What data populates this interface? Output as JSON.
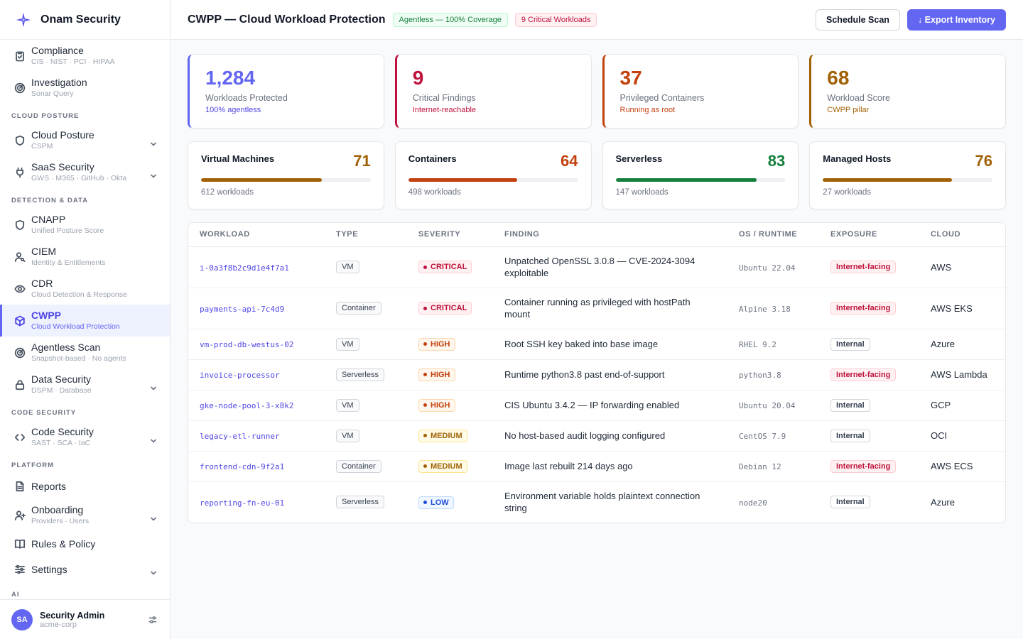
{
  "brand": {
    "name": "Onam Security"
  },
  "nav": {
    "items_a": [
      {
        "label": "Compliance",
        "sub": "CIS · NIST · PCI · HIPAA",
        "icon": "clipboard-check-icon"
      },
      {
        "label": "Investigation",
        "sub": "Sonar Query",
        "icon": "radar-icon"
      }
    ],
    "sec_cloud": "CLOUD POSTURE",
    "items_cloud": [
      {
        "label": "Cloud Posture",
        "sub": "CSPM",
        "icon": "shield-icon"
      },
      {
        "label": "SaaS Security",
        "sub": "GWS · M365 · GitHub · Okta",
        "icon": "plug-icon"
      }
    ],
    "sec_detect": "DETECTION & DATA",
    "items_detect": [
      {
        "label": "CNAPP",
        "sub": "Unified Posture Score",
        "icon": "shield-icon"
      },
      {
        "label": "CIEM",
        "sub": "Identity & Entitlements",
        "icon": "user-key-icon"
      },
      {
        "label": "CDR",
        "sub": "Cloud Detection & Response",
        "icon": "eye-icon"
      },
      {
        "label": "CWPP",
        "sub": "Cloud Workload Protection",
        "icon": "cube-icon"
      },
      {
        "label": "Agentless Scan",
        "sub": "Snapshot-based · No agents",
        "icon": "radar-icon"
      },
      {
        "label": "Data Security",
        "sub": "DSPM · Database",
        "icon": "lock-icon"
      }
    ],
    "sec_code": "CODE SECURITY",
    "items_code": [
      {
        "label": "Code Security",
        "sub": "SAST · SCA · IaC",
        "icon": "code-icon"
      }
    ],
    "sec_platform": "PLATFORM",
    "items_platform": [
      {
        "label": "Reports",
        "sub": "",
        "icon": "document-icon"
      },
      {
        "label": "Onboarding",
        "sub": "Providers · Users",
        "icon": "user-plus-icon"
      },
      {
        "label": "Rules & Policy",
        "sub": "",
        "icon": "book-icon"
      },
      {
        "label": "Settings",
        "sub": "",
        "icon": "sliders-icon"
      }
    ],
    "sec_ai": "AI"
  },
  "user": {
    "initials": "SA",
    "name": "Security Admin",
    "org": "acme-corp"
  },
  "header": {
    "title": "CWPP — Cloud Workload Protection",
    "badge_coverage": "Agentless — 100% Coverage",
    "badge_critical": "9 Critical Workloads",
    "btn_schedule": "Schedule Scan",
    "btn_export": "↓ Export Inventory"
  },
  "stats": [
    {
      "value": "1,284",
      "label": "Workloads Protected",
      "note": "100% agentless",
      "color": "#6366f1",
      "note_color": "#4f46e5"
    },
    {
      "value": "9",
      "label": "Critical Findings",
      "note": "Internet-reachable",
      "color": "#be123c",
      "note_color": "#be123c"
    },
    {
      "value": "37",
      "label": "Privileged Containers",
      "note": "Running as root",
      "color": "#c2410c",
      "note_color": "#c2410c"
    },
    {
      "value": "68",
      "label": "Workload Score",
      "note": "CWPP pillar",
      "color": "#a16207",
      "note_color": "#a16207"
    }
  ],
  "categories": [
    {
      "name": "Virtual Machines",
      "score": "71",
      "fill": 0.71,
      "count": "612 workloads",
      "color": "#a16207"
    },
    {
      "name": "Containers",
      "score": "64",
      "fill": 0.64,
      "count": "498 workloads",
      "color": "#c2410c"
    },
    {
      "name": "Serverless",
      "score": "83",
      "fill": 0.83,
      "count": "147 workloads",
      "color": "#15803d"
    },
    {
      "name": "Managed Hosts",
      "score": "76",
      "fill": 0.76,
      "count": "27 workloads",
      "color": "#a16207"
    }
  ],
  "table": {
    "headers": [
      "WORKLOAD",
      "TYPE",
      "SEVERITY",
      "FINDING",
      "OS / RUNTIME",
      "EXPOSURE",
      "CLOUD"
    ],
    "rows": [
      {
        "workload": "i-0a3f8b2c9d1e4f7a1",
        "type": "VM",
        "severity": "CRITICAL",
        "sev": "critical",
        "finding": "Unpatched OpenSSL 3.0.8 — CVE-2024-3094 exploitable",
        "os": "Ubuntu 22.04",
        "exposure": "Internet-facing",
        "exp": "internet",
        "cloud": "AWS"
      },
      {
        "workload": "payments-api-7c4d9",
        "type": "Container",
        "severity": "CRITICAL",
        "sev": "critical",
        "finding": "Container running as privileged with hostPath mount",
        "os": "Alpine 3.18",
        "exposure": "Internet-facing",
        "exp": "internet",
        "cloud": "AWS EKS"
      },
      {
        "workload": "vm-prod-db-westus-02",
        "type": "VM",
        "severity": "HIGH",
        "sev": "high",
        "finding": "Root SSH key baked into base image",
        "os": "RHEL 9.2",
        "exposure": "Internal",
        "exp": "internal",
        "cloud": "Azure"
      },
      {
        "workload": "invoice-processor",
        "type": "Serverless",
        "severity": "HIGH",
        "sev": "high",
        "finding": "Runtime python3.8 past end-of-support",
        "os": "python3.8",
        "exposure": "Internet-facing",
        "exp": "internet",
        "cloud": "AWS Lambda"
      },
      {
        "workload": "gke-node-pool-3-x8k2",
        "type": "VM",
        "severity": "HIGH",
        "sev": "high",
        "finding": "CIS Ubuntu 3.4.2 — IP forwarding enabled",
        "os": "Ubuntu 20.04",
        "exposure": "Internal",
        "exp": "internal",
        "cloud": "GCP"
      },
      {
        "workload": "legacy-etl-runner",
        "type": "VM",
        "severity": "MEDIUM",
        "sev": "medium",
        "finding": "No host-based audit logging configured",
        "os": "CentOS 7.9",
        "exposure": "Internal",
        "exp": "internal",
        "cloud": "OCI"
      },
      {
        "workload": "frontend-cdn-9f2a1",
        "type": "Container",
        "severity": "MEDIUM",
        "sev": "medium",
        "finding": "Image last rebuilt 214 days ago",
        "os": "Debian 12",
        "exposure": "Internet-facing",
        "exp": "internet",
        "cloud": "AWS ECS"
      },
      {
        "workload": "reporting-fn-eu-01",
        "type": "Serverless",
        "severity": "LOW",
        "sev": "low",
        "finding": "Environment variable holds plaintext connection string",
        "os": "node20",
        "exposure": "Internal",
        "exp": "internal",
        "cloud": "Azure"
      }
    ]
  }
}
